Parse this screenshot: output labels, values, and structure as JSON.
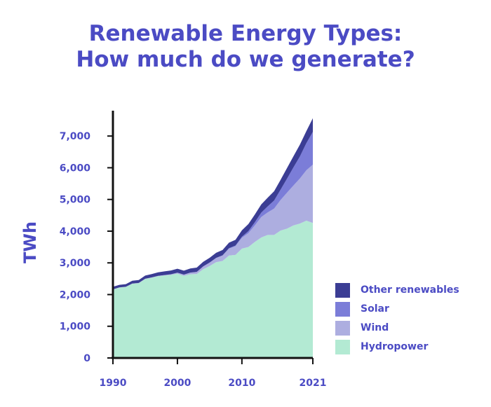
{
  "title": {
    "line1": "Renewable Energy Types:",
    "line2": "How much do we generate?"
  },
  "chart_data": {
    "type": "area",
    "stacked": true,
    "title": "Renewable Energy Types: How much do we generate?",
    "xlabel": "",
    "ylabel": "TWh",
    "xlim": [
      1990,
      2021
    ],
    "ylim": [
      0,
      7800
    ],
    "x_ticks": [
      "1990",
      "2000",
      "2010",
      "2021"
    ],
    "y_ticks": [
      "0",
      "1,000",
      "2,000",
      "3,000",
      "4,000",
      "5,000",
      "6,000",
      "7,000"
    ],
    "legend_position": "right",
    "grid": false,
    "x": [
      1990,
      1991,
      1992,
      1993,
      1994,
      1995,
      1996,
      1997,
      1998,
      1999,
      2000,
      2001,
      2002,
      2003,
      2004,
      2005,
      2006,
      2007,
      2008,
      2009,
      2010,
      2011,
      2012,
      2013,
      2014,
      2015,
      2016,
      2017,
      2018,
      2019,
      2020,
      2021
    ],
    "series": [
      {
        "name": "Hydropower",
        "color": "#b3ead3",
        "values": [
          2160,
          2220,
          2240,
          2340,
          2360,
          2490,
          2530,
          2580,
          2600,
          2620,
          2660,
          2590,
          2640,
          2650,
          2800,
          2900,
          3020,
          3060,
          3230,
          3250,
          3450,
          3500,
          3660,
          3800,
          3880,
          3880,
          4020,
          4080,
          4180,
          4240,
          4330,
          4260
        ]
      },
      {
        "name": "Wind",
        "color": "#adaee0",
        "values": [
          4,
          4,
          5,
          6,
          7,
          8,
          10,
          12,
          16,
          21,
          31,
          38,
          52,
          63,
          85,
          104,
          132,
          170,
          220,
          276,
          342,
          437,
          522,
          645,
          712,
          831,
          962,
          1134,
          1262,
          1420,
          1592,
          1838
        ]
      },
      {
        "name": "Solar",
        "color": "#7b7dd8",
        "values": [
          0,
          0,
          0,
          0,
          0,
          0,
          0,
          0,
          0,
          0,
          1,
          1,
          2,
          3,
          4,
          5,
          6,
          8,
          12,
          20,
          32,
          63,
          100,
          140,
          190,
          256,
          328,
          442,
          570,
          700,
          855,
          1033
        ]
      },
      {
        "name": "Other renewables",
        "color": "#3b3d94",
        "values": [
          80,
          82,
          84,
          88,
          90,
          100,
          104,
          108,
          115,
          118,
          122,
          124,
          128,
          134,
          144,
          150,
          158,
          166,
          174,
          180,
          202,
          222,
          244,
          258,
          272,
          292,
          310,
          334,
          352,
          370,
          380,
          430
        ]
      }
    ]
  }
}
